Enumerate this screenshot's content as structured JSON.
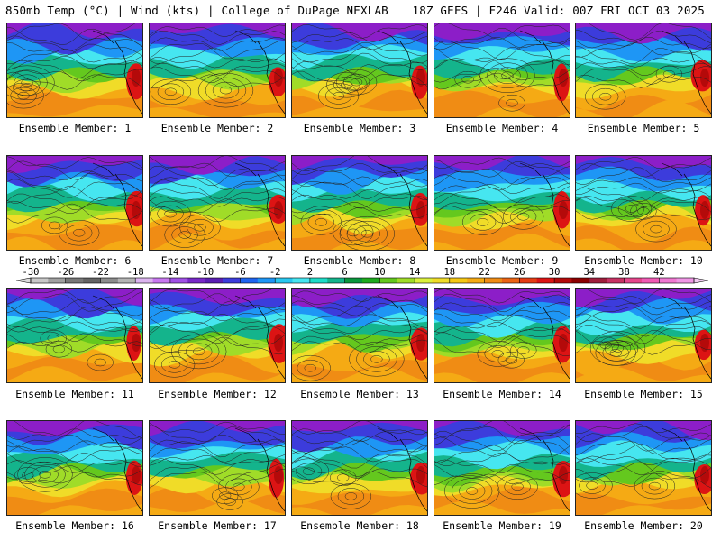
{
  "header": {
    "left_title": "850mb Temp (°C) | Wind (kts) | College of DuPage NEXLAB",
    "right_title": "18Z GEFS | F246 Valid: 00Z FRI OCT 03 2025"
  },
  "colorbar": {
    "ticks": [
      "-30",
      "-26",
      "-22",
      "-18",
      "-14",
      "-10",
      "-6",
      "-2",
      "2",
      "6",
      "10",
      "14",
      "18",
      "22",
      "26",
      "30",
      "34",
      "38",
      "42"
    ],
    "colors": [
      "#c8c8c8",
      "#a0a0a0",
      "#787878",
      "#646464",
      "#8c8c8c",
      "#b4b4b4",
      "#dcb4f0",
      "#c878f0",
      "#a050e6",
      "#7828c8",
      "#5a1eb4",
      "#3c3cdc",
      "#1e64f0",
      "#1e96f5",
      "#28c8f0",
      "#46e6f0",
      "#1edcc8",
      "#14b48c",
      "#0a963c",
      "#1eaa1e",
      "#64c81e",
      "#a0dc28",
      "#dcf03c",
      "#f0dc28",
      "#f5c814",
      "#f5aa14",
      "#f08c14",
      "#eb6414",
      "#e63c14",
      "#dc1414",
      "#b40a0a",
      "#8c0000",
      "#a01e3c",
      "#c83264",
      "#e6468c",
      "#f05ab4",
      "#f078d2",
      "#f096e6"
    ]
  },
  "panels": [
    {
      "label": "Ensemble Member: 1"
    },
    {
      "label": "Ensemble Member: 2"
    },
    {
      "label": "Ensemble Member: 3"
    },
    {
      "label": "Ensemble Member: 4"
    },
    {
      "label": "Ensemble Member: 5"
    },
    {
      "label": "Ensemble Member: 6"
    },
    {
      "label": "Ensemble Member: 7"
    },
    {
      "label": "Ensemble Member: 8"
    },
    {
      "label": "Ensemble Member: 9"
    },
    {
      "label": "Ensemble Member: 10"
    },
    {
      "label": "Ensemble Member: 11"
    },
    {
      "label": "Ensemble Member: 12"
    },
    {
      "label": "Ensemble Member: 13"
    },
    {
      "label": "Ensemble Member: 14"
    },
    {
      "label": "Ensemble Member: 15"
    },
    {
      "label": "Ensemble Member: 16"
    },
    {
      "label": "Ensemble Member: 17"
    },
    {
      "label": "Ensemble Member: 18"
    },
    {
      "label": "Ensemble Member: 19"
    },
    {
      "label": "Ensemble Member: 20"
    }
  ]
}
